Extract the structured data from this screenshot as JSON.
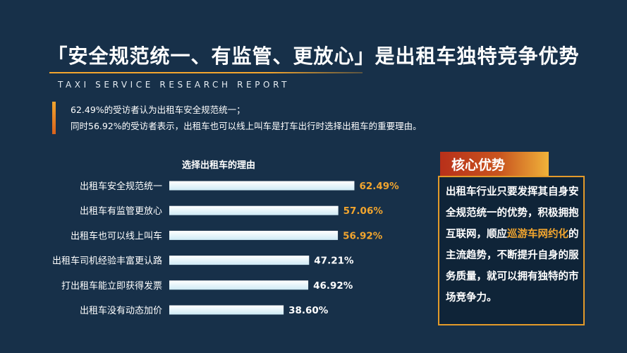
{
  "header": {
    "title": "「安全规范统一、有监管、更放心」是出租车独特竞争优势",
    "subtitle": "TAXI SERVICE RESEARCH REPORT"
  },
  "summary": {
    "line1": "62.49%的受访者认为出租车安全规范统一；",
    "line2": "同时56.92%的受访者表示，出租车也可以线上叫车是打车出行时选择出租车的重要理由。"
  },
  "chart_data": {
    "type": "bar",
    "orientation": "horizontal",
    "title": "选择出租车的理由",
    "categories": [
      "出租车安全规范统一",
      "出租车有监管更放心",
      "出租车也可以线上叫车",
      "出租车司机经验丰富更认路",
      "打出租车能立即获得发票",
      "出租车没有动态加价"
    ],
    "values": [
      62.49,
      57.06,
      56.92,
      47.21,
      46.92,
      38.6
    ],
    "value_labels": [
      "62.49%",
      "57.06%",
      "56.92%",
      "47.21%",
      "46.92%",
      "38.60%"
    ],
    "highlight_color": "#f2a52e",
    "normal_label_color": "#ffffff",
    "highlighted_count": 3,
    "grid": false,
    "legend": "none"
  },
  "panel": {
    "title": "核心优势",
    "text_before": "出租车行业只要发挥其自身安全规范统一的优势，积极拥抱互联网，顺应",
    "highlight": "巡游车网约化",
    "text_after": "的主流趋势，不断提升自身的服务质量，就可以拥有独特的市场竞争力。",
    "accent_color": "#f2a52e"
  }
}
